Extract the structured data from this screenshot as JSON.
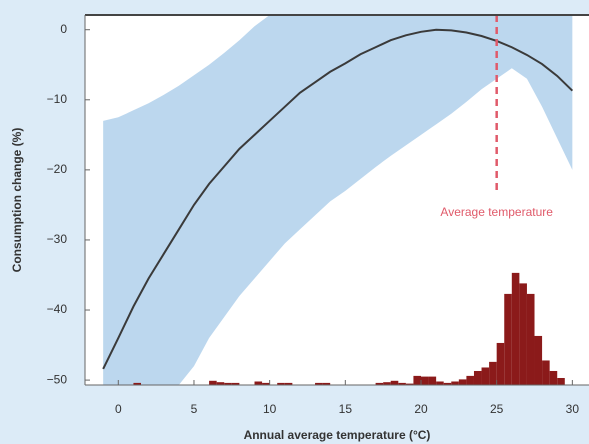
{
  "chart_data": {
    "type": "line-band-histogram",
    "xlabel": "Annual average temperature (°C)",
    "ylabel": "Consumption change (%)",
    "xlim": [
      -2.2,
      31.1
    ],
    "ylim": [
      -50.7,
      2.1
    ],
    "xticks": [
      0,
      5,
      10,
      15,
      20,
      25,
      30
    ],
    "yticks": [
      {
        "value": 0,
        "label": "0"
      },
      {
        "value": -10,
        "label": "−10"
      },
      {
        "value": -20,
        "label": "−20"
      },
      {
        "value": -30,
        "label": "−30"
      },
      {
        "value": -40,
        "label": "−40"
      },
      {
        "value": -50,
        "label": "−50"
      }
    ],
    "x": [
      -1,
      0,
      1,
      2,
      3,
      4,
      5,
      6,
      7,
      8,
      9,
      10,
      11,
      12,
      13,
      14,
      15,
      16,
      17,
      18,
      19,
      20,
      21,
      22,
      23,
      24,
      25,
      26,
      27,
      28,
      29,
      30
    ],
    "series": [
      {
        "color": "#3a3a3a",
        "values": [
          -48.4,
          -44,
          -39.5,
          -35.5,
          -32,
          -28.5,
          -25,
          -22,
          -19.5,
          -17,
          -15,
          -13,
          -11,
          -9,
          -7.5,
          -6,
          -4.8,
          -3.5,
          -2.5,
          -1.5,
          -0.8,
          -0.3,
          0,
          -0.1,
          -0.4,
          -0.9,
          -1.6,
          -2.5,
          -3.6,
          -4.9,
          -6.6,
          -8.7
        ]
      }
    ],
    "band": {
      "color": "#bcd7ee",
      "upper": [
        -13,
        -12.5,
        -11.5,
        -10.5,
        -9.3,
        -8,
        -6.5,
        -5,
        -3.3,
        -1.5,
        0.5,
        2.1,
        2.1,
        2.1,
        2.1,
        2.1,
        2.1,
        2.1,
        2.1,
        2.1,
        2.1,
        2.1,
        2.1,
        2.1,
        2.1,
        2.1,
        2.1,
        2.1,
        2.1,
        2.1,
        2.1,
        2.1
      ],
      "lower": [
        -50.7,
        -50.7,
        -50.7,
        -50.7,
        -50.7,
        -50.7,
        -48,
        -44,
        -41,
        -38,
        -35.5,
        -33,
        -30.5,
        -28.5,
        -26.5,
        -24.5,
        -23,
        -21.3,
        -19.6,
        -18,
        -16.5,
        -15,
        -13.5,
        -12,
        -10.3,
        -8.5,
        -7,
        -5.5,
        -7,
        -11,
        -15.5,
        -20
      ]
    },
    "histogram": {
      "color": "#8b1a1a",
      "bins": [
        0,
        0.5,
        1,
        1.5,
        2,
        2.5,
        3,
        3.5,
        4,
        4.5,
        5,
        5.5,
        6,
        6.5,
        7,
        7.5,
        8,
        8.5,
        9,
        9.5,
        10,
        10.5,
        11,
        11.5,
        12,
        12.5,
        13,
        13.5,
        14,
        14.5,
        15,
        15.5,
        16,
        16.5,
        17,
        17.5,
        18,
        18.5,
        19,
        19.5,
        20,
        20.5,
        21,
        21.5,
        22,
        22.5,
        23,
        23.5,
        24,
        24.5,
        25,
        25.5,
        26,
        26.5,
        27,
        27.5,
        28,
        28.5,
        29,
        29.5,
        30
      ],
      "values": [
        0,
        0,
        0.3,
        0,
        0,
        0,
        0,
        0,
        0,
        0,
        0,
        0,
        0.6,
        0.4,
        0.3,
        0.3,
        0,
        0,
        0.5,
        0.3,
        0,
        0.3,
        0.3,
        0,
        0,
        0,
        0.3,
        0.3,
        0,
        0,
        0,
        0,
        0,
        0,
        0.3,
        0.4,
        0.6,
        0.3,
        0.2,
        1.3,
        1.2,
        1.2,
        0.5,
        0.3,
        0.5,
        0.8,
        1.3,
        2,
        2.5,
        3.3,
        6,
        13,
        16,
        14.5,
        13,
        7,
        3.5,
        2,
        1,
        0
      ]
    },
    "reference_line": {
      "x": 25,
      "color": "#e05a6a",
      "label": "Average temperature"
    }
  }
}
